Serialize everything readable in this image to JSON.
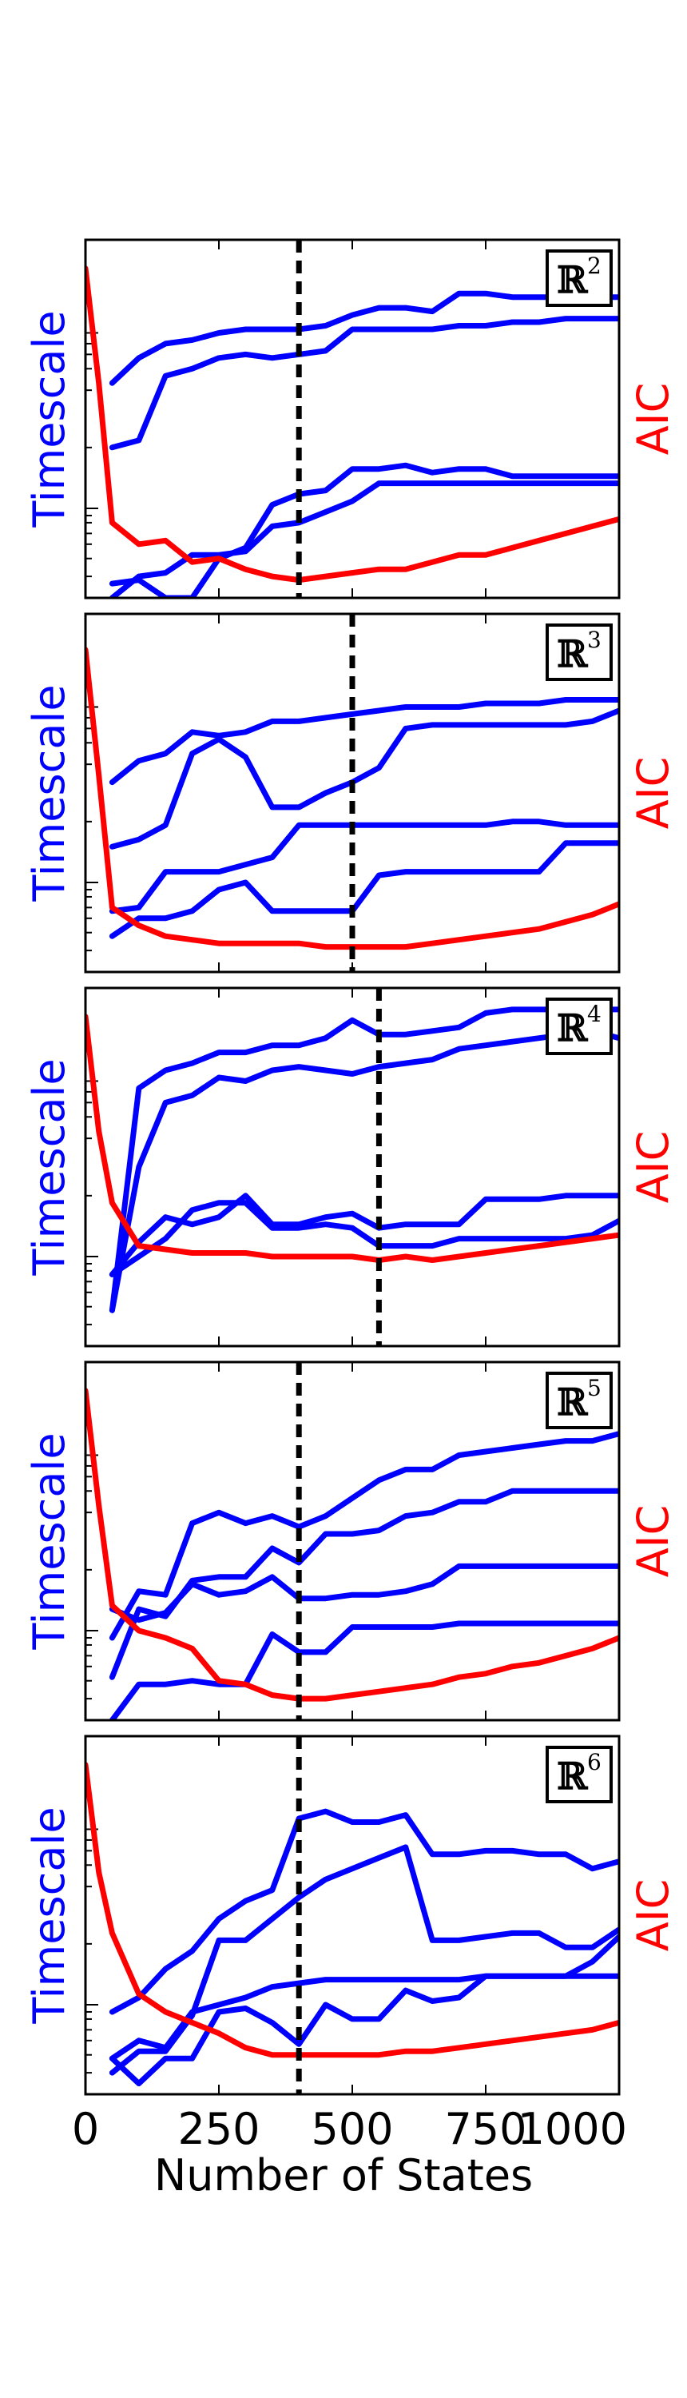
{
  "figure": {
    "shared_x": {
      "label": "Number of States",
      "ticks": [
        0,
        250,
        500,
        750,
        1000
      ],
      "tick_labels": [
        "0",
        "250",
        "500",
        "750",
        "1000"
      ],
      "xlim": [
        0,
        1000
      ]
    },
    "left_axis_label": "Timescale",
    "right_axis_label": "AIC",
    "colors": {
      "timescale": "#0000ff",
      "aic": "#ff0000",
      "cutoff": "#000000"
    }
  },
  "chart_data": [
    {
      "type": "line",
      "panel_label": "ℝ",
      "panel_superscript": "2",
      "xlabel": "",
      "ylabel": "Timescale",
      "ylabel_right": "AIC",
      "xlim": [
        0,
        1000
      ],
      "ylim": [
        0,
        1
      ],
      "cutoff_x": 400,
      "x": [
        50,
        100,
        150,
        200,
        250,
        300,
        350,
        400,
        450,
        500,
        550,
        600,
        650,
        700,
        750,
        800,
        850,
        900,
        950,
        1000
      ],
      "series": [
        {
          "values": [
            0.6,
            0.67,
            0.71,
            0.72,
            0.74,
            0.75,
            0.75,
            0.75,
            0.76,
            0.79,
            0.81,
            0.81,
            0.8,
            0.85,
            0.85,
            0.84,
            0.84,
            0.84,
            0.84,
            0.84
          ]
        },
        {
          "values": [
            0.42,
            0.44,
            0.62,
            0.64,
            0.67,
            0.68,
            0.67,
            0.68,
            0.69,
            0.75,
            0.75,
            0.75,
            0.75,
            0.76,
            0.76,
            0.77,
            0.77,
            0.78,
            0.78,
            0.78
          ]
        },
        {
          "values": [
            0.04,
            0.05,
            0.0,
            0.0,
            0.11,
            0.14,
            0.26,
            0.29,
            0.3,
            0.36,
            0.36,
            0.37,
            0.35,
            0.36,
            0.36,
            0.34,
            0.34,
            0.34,
            0.34,
            0.34
          ]
        },
        {
          "values": [
            0.0,
            0.06,
            0.07,
            0.12,
            0.12,
            0.13,
            0.2,
            0.21,
            0.24,
            0.27,
            0.32,
            0.32,
            0.32,
            0.32,
            0.32,
            0.32,
            0.32,
            0.32,
            0.32,
            0.32
          ]
        }
      ],
      "aic": {
        "x": [
          0,
          25,
          50,
          100,
          150,
          200,
          250,
          300,
          350,
          400,
          450,
          500,
          550,
          600,
          650,
          700,
          750,
          800,
          850,
          900,
          950,
          1000
        ],
        "values": [
          0.92,
          0.6,
          0.21,
          0.15,
          0.16,
          0.1,
          0.11,
          0.08,
          0.06,
          0.05,
          0.06,
          0.07,
          0.08,
          0.08,
          0.1,
          0.12,
          0.12,
          0.14,
          0.16,
          0.18,
          0.2,
          0.22
        ]
      }
    },
    {
      "type": "line",
      "panel_label": "ℝ",
      "panel_superscript": "3",
      "xlabel": "",
      "ylabel": "Timescale",
      "ylabel_right": "AIC",
      "xlim": [
        0,
        1000
      ],
      "ylim": [
        0,
        1
      ],
      "cutoff_x": 500,
      "x": [
        50,
        100,
        150,
        200,
        250,
        300,
        350,
        400,
        450,
        500,
        550,
        600,
        650,
        700,
        750,
        800,
        850,
        900,
        950,
        1000
      ],
      "series": [
        {
          "values": [
            0.53,
            0.59,
            0.61,
            0.67,
            0.66,
            0.67,
            0.7,
            0.7,
            0.71,
            0.72,
            0.73,
            0.74,
            0.74,
            0.74,
            0.75,
            0.75,
            0.75,
            0.76,
            0.76,
            0.76
          ]
        },
        {
          "values": [
            0.35,
            0.37,
            0.41,
            0.61,
            0.65,
            0.6,
            0.46,
            0.46,
            0.5,
            0.53,
            0.57,
            0.68,
            0.69,
            0.69,
            0.69,
            0.69,
            0.69,
            0.69,
            0.7,
            0.73
          ]
        },
        {
          "values": [
            0.17,
            0.18,
            0.28,
            0.28,
            0.28,
            0.3,
            0.32,
            0.41,
            0.41,
            0.41,
            0.41,
            0.41,
            0.41,
            0.41,
            0.41,
            0.42,
            0.42,
            0.41,
            0.41,
            0.41
          ]
        },
        {
          "values": [
            0.1,
            0.15,
            0.15,
            0.17,
            0.23,
            0.25,
            0.17,
            0.17,
            0.17,
            0.17,
            0.27,
            0.28,
            0.28,
            0.28,
            0.28,
            0.28,
            0.28,
            0.36,
            0.36,
            0.36
          ]
        }
      ],
      "aic": {
        "x": [
          0,
          25,
          50,
          100,
          150,
          200,
          250,
          300,
          350,
          400,
          450,
          500,
          550,
          600,
          650,
          700,
          750,
          800,
          850,
          900,
          950,
          1000
        ],
        "values": [
          0.9,
          0.55,
          0.18,
          0.13,
          0.1,
          0.09,
          0.08,
          0.08,
          0.08,
          0.08,
          0.07,
          0.07,
          0.07,
          0.07,
          0.08,
          0.09,
          0.1,
          0.11,
          0.12,
          0.14,
          0.16,
          0.19
        ]
      }
    },
    {
      "type": "line",
      "panel_label": "ℝ",
      "panel_superscript": "4",
      "xlabel": "",
      "ylabel": "Timescale",
      "ylabel_right": "AIC",
      "xlim": [
        0,
        1000
      ],
      "ylim": [
        0,
        1
      ],
      "cutoff_x": 550,
      "x": [
        50,
        100,
        150,
        200,
        250,
        300,
        350,
        400,
        450,
        500,
        550,
        600,
        650,
        700,
        750,
        800,
        850,
        900,
        950,
        1000
      ],
      "series": [
        {
          "values": [
            0.1,
            0.72,
            0.77,
            0.79,
            0.82,
            0.82,
            0.84,
            0.84,
            0.86,
            0.91,
            0.87,
            0.87,
            0.88,
            0.89,
            0.93,
            0.94,
            0.94,
            0.94,
            0.94,
            0.94
          ]
        },
        {
          "values": [
            0.1,
            0.5,
            0.68,
            0.7,
            0.75,
            0.74,
            0.77,
            0.78,
            0.77,
            0.76,
            0.78,
            0.79,
            0.8,
            0.83,
            0.84,
            0.85,
            0.86,
            0.87,
            0.88,
            0.86
          ]
        },
        {
          "values": [
            0.2,
            0.25,
            0.3,
            0.38,
            0.4,
            0.4,
            0.33,
            0.33,
            0.34,
            0.33,
            0.28,
            0.28,
            0.28,
            0.3,
            0.3,
            0.3,
            0.3,
            0.3,
            0.31,
            0.35
          ]
        },
        {
          "values": [
            0.2,
            0.29,
            0.36,
            0.34,
            0.36,
            0.42,
            0.34,
            0.34,
            0.36,
            0.37,
            0.33,
            0.34,
            0.34,
            0.34,
            0.41,
            0.41,
            0.41,
            0.42,
            0.42,
            0.42
          ]
        }
      ],
      "aic": {
        "x": [
          0,
          25,
          50,
          100,
          150,
          200,
          250,
          300,
          350,
          400,
          450,
          500,
          550,
          600,
          650,
          700,
          750,
          800,
          850,
          900,
          950,
          1000
        ],
        "values": [
          0.92,
          0.6,
          0.4,
          0.28,
          0.27,
          0.26,
          0.26,
          0.26,
          0.25,
          0.25,
          0.25,
          0.25,
          0.24,
          0.25,
          0.24,
          0.25,
          0.26,
          0.27,
          0.28,
          0.29,
          0.3,
          0.31
        ]
      }
    },
    {
      "type": "line",
      "panel_label": "ℝ",
      "panel_superscript": "5",
      "xlabel": "",
      "ylabel": "Timescale",
      "ylabel_right": "AIC",
      "xlim": [
        0,
        1000
      ],
      "ylim": [
        0,
        1
      ],
      "cutoff_x": 400,
      "x": [
        50,
        100,
        150,
        200,
        250,
        300,
        350,
        400,
        450,
        500,
        550,
        600,
        650,
        700,
        750,
        800,
        850,
        900,
        950,
        1000
      ],
      "series": [
        {
          "values": [
            0.23,
            0.36,
            0.35,
            0.55,
            0.58,
            0.55,
            0.57,
            0.54,
            0.57,
            0.62,
            0.67,
            0.7,
            0.7,
            0.74,
            0.75,
            0.76,
            0.77,
            0.78,
            0.78,
            0.8
          ]
        },
        {
          "values": [
            0.12,
            0.31,
            0.29,
            0.39,
            0.4,
            0.4,
            0.48,
            0.44,
            0.52,
            0.52,
            0.53,
            0.57,
            0.58,
            0.61,
            0.61,
            0.64,
            0.64,
            0.64,
            0.64,
            0.64
          ]
        },
        {
          "values": [
            0.0,
            0.1,
            0.1,
            0.11,
            0.1,
            0.1,
            0.24,
            0.19,
            0.19,
            0.26,
            0.26,
            0.26,
            0.26,
            0.27,
            0.27,
            0.27,
            0.27,
            0.27,
            0.27,
            0.27
          ]
        },
        {
          "values": [
            0.31,
            0.28,
            0.3,
            0.38,
            0.35,
            0.36,
            0.4,
            0.34,
            0.34,
            0.35,
            0.35,
            0.36,
            0.38,
            0.43,
            0.43,
            0.43,
            0.43,
            0.43,
            0.43,
            0.43
          ]
        }
      ],
      "aic": {
        "x": [
          0,
          25,
          50,
          100,
          150,
          200,
          250,
          300,
          350,
          400,
          450,
          500,
          550,
          600,
          650,
          700,
          750,
          800,
          850,
          900,
          950,
          1000
        ],
        "values": [
          0.92,
          0.6,
          0.32,
          0.25,
          0.23,
          0.2,
          0.11,
          0.1,
          0.07,
          0.06,
          0.06,
          0.07,
          0.08,
          0.09,
          0.1,
          0.12,
          0.13,
          0.15,
          0.16,
          0.18,
          0.2,
          0.23
        ]
      }
    },
    {
      "type": "line",
      "panel_label": "ℝ",
      "panel_superscript": "6",
      "xlabel": "",
      "ylabel": "Timescale",
      "ylabel_right": "AIC",
      "xlim": [
        0,
        1000
      ],
      "ylim": [
        0,
        1
      ],
      "cutoff_x": 400,
      "x": [
        50,
        100,
        150,
        200,
        250,
        300,
        350,
        400,
        450,
        500,
        550,
        600,
        650,
        700,
        750,
        800,
        850,
        900,
        950,
        1000
      ],
      "series": [
        {
          "values": [
            0.23,
            0.27,
            0.35,
            0.4,
            0.49,
            0.54,
            0.57,
            0.77,
            0.79,
            0.76,
            0.76,
            0.78,
            0.67,
            0.67,
            0.68,
            0.68,
            0.67,
            0.67,
            0.63,
            0.65
          ]
        },
        {
          "values": [
            0.06,
            0.12,
            0.12,
            0.22,
            0.43,
            0.43,
            0.49,
            0.55,
            0.6,
            0.63,
            0.66,
            0.69,
            0.43,
            0.43,
            0.44,
            0.45,
            0.45,
            0.41,
            0.41,
            0.46
          ]
        },
        {
          "values": [
            0.1,
            0.15,
            0.13,
            0.23,
            0.25,
            0.27,
            0.3,
            0.31,
            0.32,
            0.32,
            0.32,
            0.32,
            0.32,
            0.32,
            0.33,
            0.33,
            0.33,
            0.33,
            0.33,
            0.33
          ]
        },
        {
          "values": [
            0.1,
            0.03,
            0.1,
            0.1,
            0.23,
            0.24,
            0.2,
            0.14,
            0.25,
            0.21,
            0.21,
            0.29,
            0.26,
            0.27,
            0.33,
            0.33,
            0.33,
            0.33,
            0.37,
            0.44
          ]
        }
      ],
      "aic": {
        "x": [
          0,
          25,
          50,
          100,
          150,
          200,
          250,
          300,
          350,
          400,
          450,
          500,
          550,
          600,
          650,
          700,
          750,
          800,
          850,
          900,
          950,
          1000
        ],
        "values": [
          0.92,
          0.62,
          0.45,
          0.28,
          0.23,
          0.2,
          0.17,
          0.13,
          0.11,
          0.11,
          0.11,
          0.11,
          0.11,
          0.12,
          0.12,
          0.13,
          0.14,
          0.15,
          0.16,
          0.17,
          0.18,
          0.2
        ]
      }
    }
  ]
}
